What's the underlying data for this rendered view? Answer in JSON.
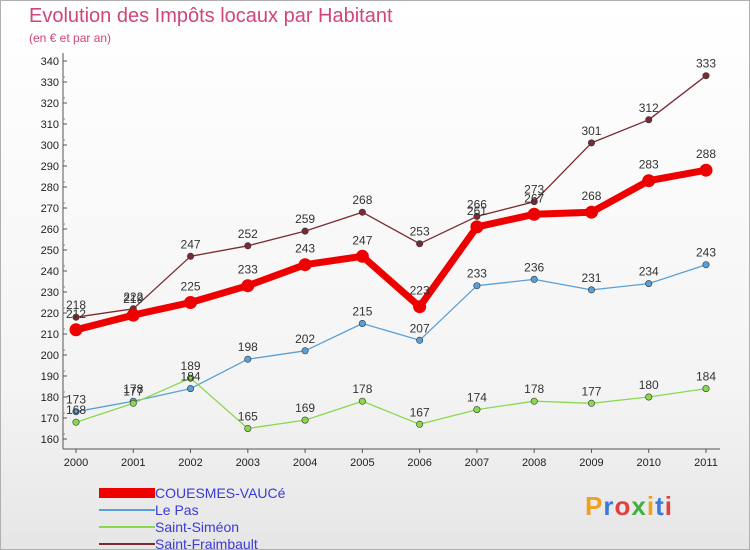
{
  "chart_data": {
    "type": "line",
    "title": "Evolution des Impôts locaux par Habitant",
    "subtitle": "(en € et par an)",
    "xlabel": "",
    "ylabel": "",
    "categories": [
      "2000",
      "2001",
      "2002",
      "2003",
      "2004",
      "2005",
      "2006",
      "2007",
      "2008",
      "2009",
      "2010",
      "2011"
    ],
    "yticks": [
      "160",
      "170",
      "180",
      "190",
      "200",
      "210",
      "220",
      "230",
      "240",
      "250",
      "260",
      "270",
      "280",
      "290",
      "300",
      "310",
      "320",
      "330",
      "340"
    ],
    "ylim": [
      160,
      340
    ],
    "grid": false,
    "legend_position": "bottom-left",
    "series": [
      {
        "name": "Saint-Fraimbault",
        "color": "#7a2a32",
        "values": [
          218,
          222,
          247,
          252,
          259,
          268,
          253,
          266,
          273,
          301,
          312,
          333
        ],
        "labels": [
          "218",
          "222",
          "247",
          "252",
          "259",
          "268",
          "253",
          "266",
          "273",
          "301",
          "312",
          "333"
        ]
      },
      {
        "name": "Le Pas",
        "color": "#5aa0d8",
        "values": [
          173,
          178,
          184,
          198,
          202,
          215,
          207,
          233,
          236,
          231,
          234,
          243
        ],
        "labels": [
          "173",
          "178",
          "184",
          "198",
          "202",
          "215",
          "207",
          "233",
          "236",
          "231",
          "234",
          "243"
        ]
      },
      {
        "name": "Saint-Siméon",
        "color": "#8ad850",
        "values": [
          168,
          177,
          189,
          165,
          169,
          178,
          167,
          174,
          178,
          177,
          180,
          184
        ],
        "labels": [
          "168",
          "177",
          "189",
          "165",
          "169",
          "178",
          "167",
          "174",
          "178",
          "177",
          "180",
          "184"
        ]
      },
      {
        "name": "COUESMES-VAUCé",
        "color": "#ee0000",
        "values": [
          212,
          219,
          225,
          233,
          243,
          247,
          223,
          261,
          267,
          268,
          283,
          288
        ],
        "labels": [
          "212",
          "219",
          "225",
          "233",
          "243",
          "247",
          "223",
          "261",
          "267",
          "268",
          "283",
          "288"
        ]
      }
    ]
  },
  "legend": {
    "items": [
      {
        "name": "COUESMES-VAUCé",
        "color": "#ee0000"
      },
      {
        "name": "Le Pas",
        "color": "#5aa0d8"
      },
      {
        "name": "Saint-Siméon",
        "color": "#8ad850"
      },
      {
        "name": "Saint-Fraimbault",
        "color": "#7a2a32"
      }
    ]
  },
  "logo": {
    "letters": [
      "P",
      "r",
      "o",
      "x",
      "i",
      "t",
      "i"
    ],
    "colors": [
      "#f0a020",
      "#3a7ae0",
      "#e04040",
      "#40b040",
      "#f0a020",
      "#3a7ae0",
      "#e04040"
    ]
  }
}
